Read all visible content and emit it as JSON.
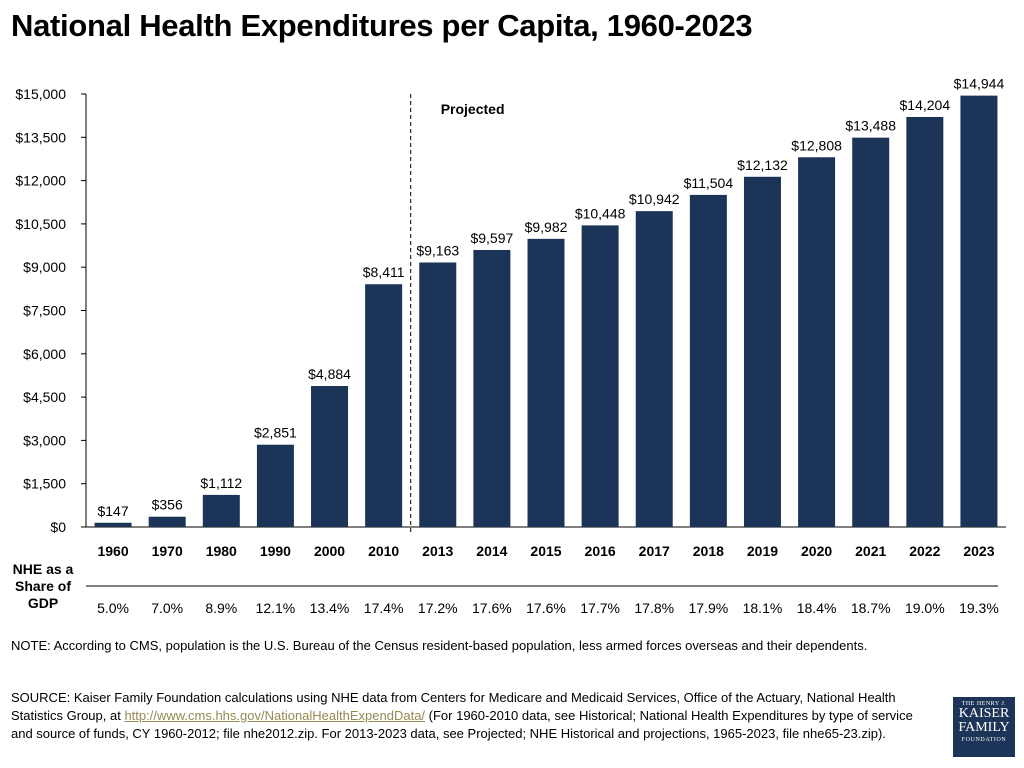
{
  "chart_data": {
    "type": "bar",
    "title": "National Health Expenditures per Capita, 1960-2023",
    "categories": [
      "1960",
      "1970",
      "1980",
      "1990",
      "2000",
      "2010",
      "2013",
      "2014",
      "2015",
      "2016",
      "2017",
      "2018",
      "2019",
      "2020",
      "2021",
      "2022",
      "2023"
    ],
    "values": [
      147,
      356,
      1112,
      2851,
      4884,
      8411,
      9163,
      9597,
      9982,
      10448,
      10942,
      11504,
      12132,
      12808,
      13488,
      14204,
      14944
    ],
    "value_labels": [
      "$147",
      "$356",
      "$1,112",
      "$2,851",
      "$4,884",
      "$8,411",
      "$9,163",
      "$9,597",
      "$9,982",
      "$10,448",
      "$10,942",
      "$11,504",
      "$12,132",
      "$12,808",
      "$13,488",
      "$14,204",
      "$14,944"
    ],
    "ylim": [
      0,
      15000
    ],
    "yticks": [
      0,
      1500,
      3000,
      4500,
      6000,
      7500,
      9000,
      10500,
      12000,
      13500,
      15000
    ],
    "ytick_labels": [
      "$0",
      "$1,500",
      "$3,000",
      "$4,500",
      "$6,000",
      "$7,500",
      "$9,000",
      "$10,500",
      "$12,000",
      "$13,500",
      "$15,000"
    ],
    "grid": false,
    "bar_color": "#1c3457",
    "annotation": "Projected",
    "projected_from_category": "2013",
    "gdp_share_label": "NHE as a Share of GDP",
    "gdp_share": [
      "5.0%",
      "7.0%",
      "8.9%",
      "12.1%",
      "13.4%",
      "17.4%",
      "17.2%",
      "17.6%",
      "17.6%",
      "17.7%",
      "17.8%",
      "17.9%",
      "18.1%",
      "18.4%",
      "18.7%",
      "19.0%",
      "19.3%"
    ]
  },
  "note": "NOTE: According to CMS, population is the U.S. Bureau of the Census resident-based population, less armed forces overseas and their dependents.",
  "source": {
    "before": "SOURCE: Kaiser Family Foundation calculations using NHE data from Centers for Medicare and Medicaid Services, Office of the Actuary, National Health Statistics Group, at ",
    "link": "http://www.cms.hhs.gov/NationalHealthExpendData/",
    "after": " (For 1960-2010 data, see Historical; National Health Expenditures by type of service and source of funds, CY 1960-2012; file nhe2012.zip. For 2013-2023 data, see Projected; NHE Historical and projections, 1965-2023, file nhe65-23.zip)."
  },
  "logo": {
    "line1": "THE HENRY J.",
    "line2": "KAISER",
    "line3": "FAMILY",
    "line4": "FOUNDATION"
  }
}
